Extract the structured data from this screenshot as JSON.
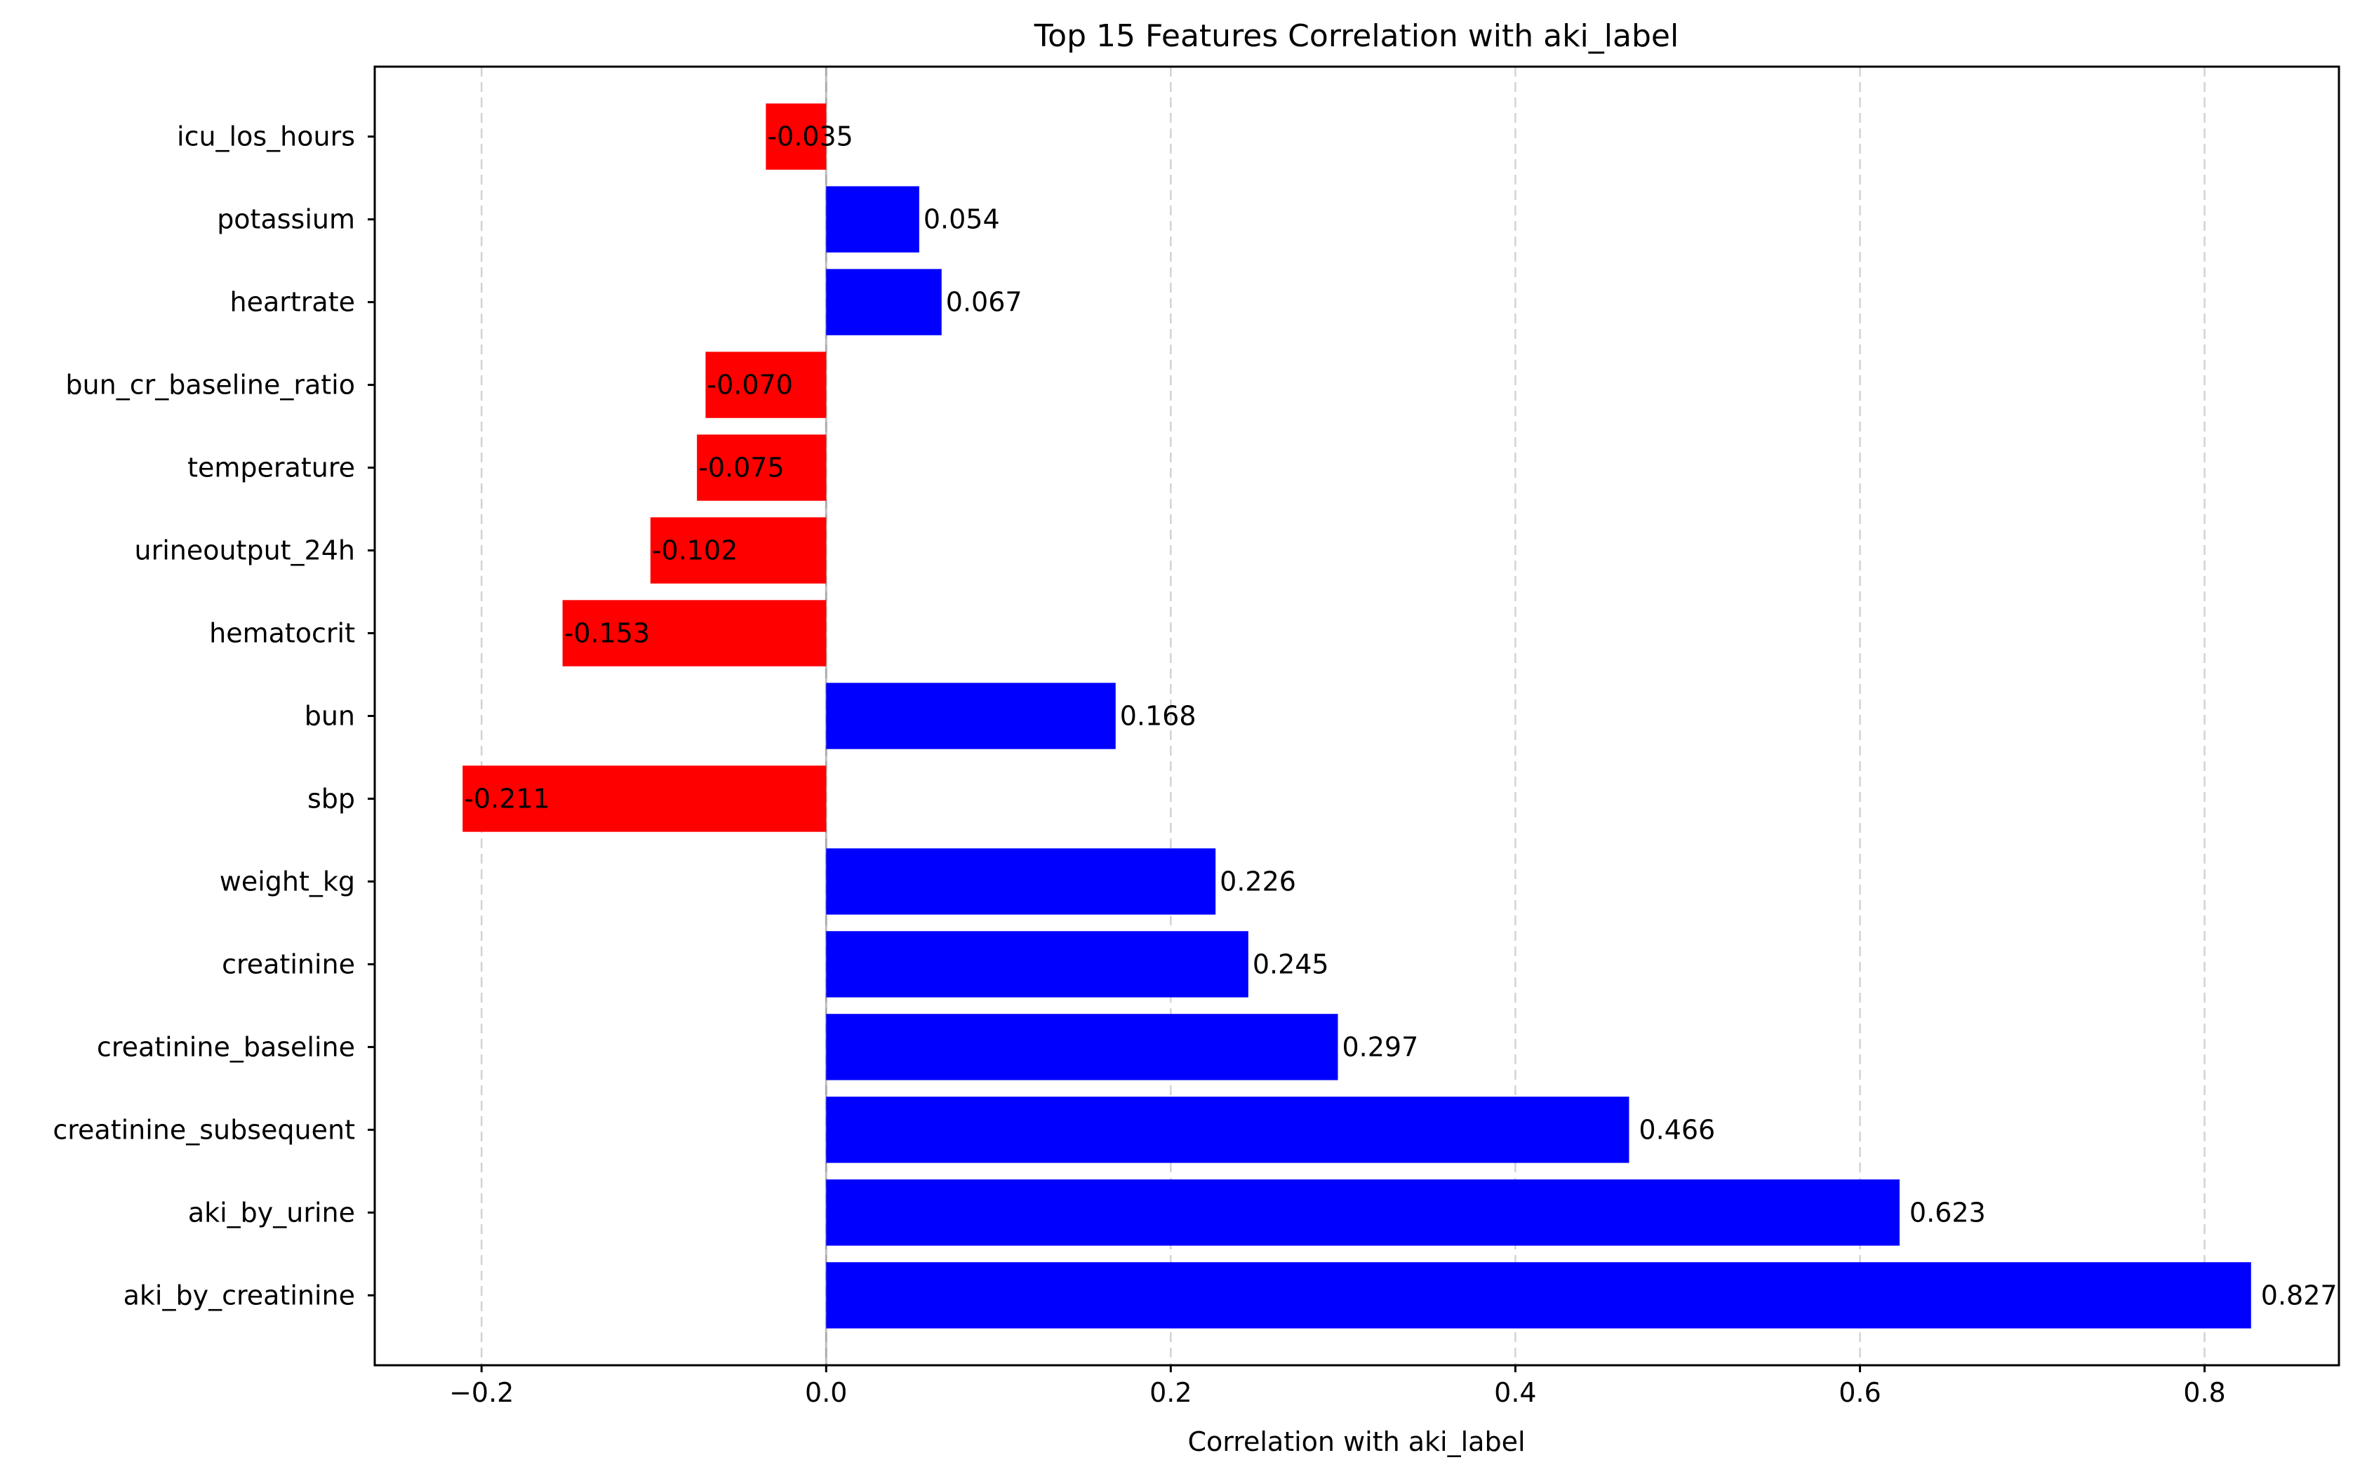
{
  "chart_data": {
    "type": "bar",
    "orientation": "horizontal",
    "title": "Top 15 Features Correlation with aki_label",
    "xlabel": "Correlation with aki_label",
    "ylabel": "",
    "xlim": [
      -0.262,
      0.878
    ],
    "xticks": [
      -0.2,
      0.0,
      0.2,
      0.4,
      0.6,
      0.8
    ],
    "xtick_labels": [
      "−0.2",
      "0.0",
      "0.2",
      "0.4",
      "0.6",
      "0.8"
    ],
    "grid": "x-axis dashed",
    "positive_color": "#0000ff",
    "negative_color": "#ff0000",
    "categories": [
      "icu_los_hours",
      "potassium",
      "heartrate",
      "bun_cr_baseline_ratio",
      "temperature",
      "urineoutput_24h",
      "hematocrit",
      "bun",
      "sbp",
      "weight_kg",
      "creatinine",
      "creatinine_baseline",
      "creatinine_subsequent",
      "aki_by_urine",
      "aki_by_creatinine"
    ],
    "values": [
      -0.035,
      0.054,
      0.067,
      -0.07,
      -0.075,
      -0.102,
      -0.153,
      0.168,
      -0.211,
      0.226,
      0.245,
      0.297,
      0.466,
      0.623,
      0.827
    ],
    "value_labels": [
      "-0.035",
      "0.054",
      "0.067",
      "-0.070",
      "-0.075",
      "-0.102",
      "-0.153",
      "0.168",
      "-0.211",
      "0.226",
      "0.245",
      "0.297",
      "0.466",
      "0.623",
      "0.827"
    ]
  }
}
